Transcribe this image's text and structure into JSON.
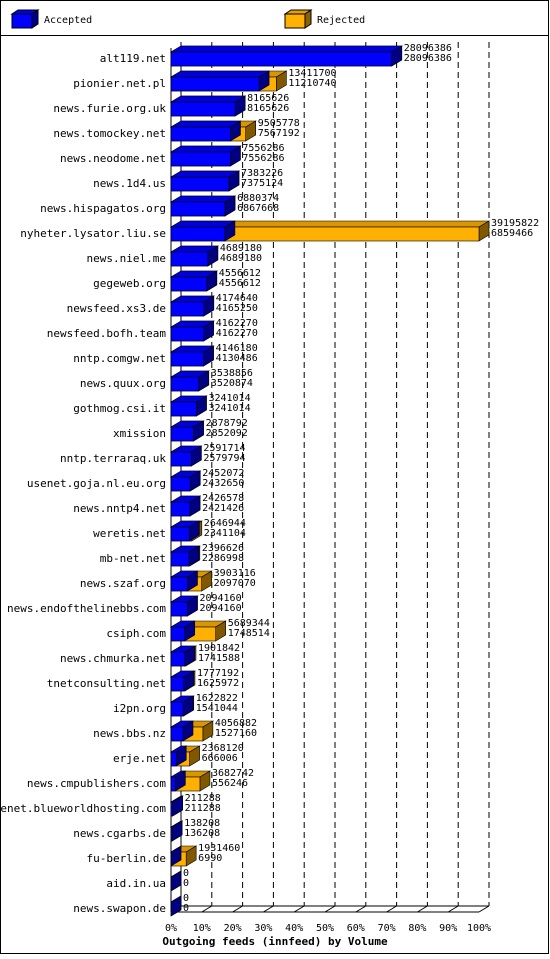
{
  "chart_data": {
    "type": "bar3d",
    "orientation": "horizontal",
    "overlap": true,
    "title": "Outgoing feeds (innfeed) by Volume",
    "categories": [
      "alt119.net",
      "pionier.net.pl",
      "news.furie.org.uk",
      "news.tomockey.net",
      "news.neodome.net",
      "news.1d4.us",
      "news.hispagatos.org",
      "nyheter.lysator.liu.se",
      "news.niel.me",
      "gegeweb.org",
      "newsfeed.xs3.de",
      "newsfeed.bofh.team",
      "nntp.comgw.net",
      "news.quux.org",
      "gothmog.csi.it",
      "xmission",
      "nntp.terraraq.uk",
      "usenet.goja.nl.eu.org",
      "news.nntp4.net",
      "weretis.net",
      "mb-net.net",
      "news.szaf.org",
      "news.endofthelinebbs.com",
      "csiph.com",
      "news.chmurka.net",
      "tnetconsulting.net",
      "i2pn.org",
      "news.bbs.nz",
      "erje.net",
      "news.cmpublishers.com",
      "usenet.blueworldhosting.com",
      "news.cgarbs.de",
      "fu-berlin.de",
      "aid.in.ua",
      "news.swapon.de"
    ],
    "series": [
      {
        "name": "Accepted",
        "color": "#0000ff",
        "values": [
          28096386,
          11210740,
          8165626,
          7567192,
          7556286,
          7375124,
          6867668,
          6859466,
          4689180,
          4556612,
          4165250,
          4162270,
          4130486,
          3520874,
          3241014,
          2852092,
          2579794,
          2432650,
          2421426,
          2341104,
          2286998,
          2097070,
          2094160,
          1748514,
          1741588,
          1625972,
          1541044,
          1527160,
          666006,
          556246,
          211288,
          136208,
          6990,
          0,
          0
        ]
      },
      {
        "name": "Rejected",
        "color": "#ffb000",
        "values": [
          28096386,
          13411700,
          8165626,
          9505778,
          7556286,
          7383226,
          6880374,
          39195822,
          4689180,
          4556612,
          4174640,
          4162270,
          4146180,
          3538856,
          3241014,
          2878792,
          2591714,
          2452072,
          2426578,
          2646944,
          2396626,
          3903116,
          2094160,
          5689344,
          1901842,
          1777192,
          1622822,
          4056882,
          2368120,
          3682742,
          211288,
          138208,
          1931460,
          0,
          0
        ]
      }
    ],
    "xlim": [
      0,
      39195822
    ],
    "xticks": [
      {
        "value": 0,
        "label": "0%"
      },
      {
        "value": 3919582.2,
        "label": "10%"
      },
      {
        "value": 7839164.4,
        "label": "20%"
      },
      {
        "value": 11758746.6,
        "label": "30%"
      },
      {
        "value": 15678328.8,
        "label": "40%"
      },
      {
        "value": 19597911,
        "label": "50%"
      },
      {
        "value": 23517493.2,
        "label": "60%"
      },
      {
        "value": 27437075.4,
        "label": "70%"
      },
      {
        "value": 31356657.6,
        "label": "80%"
      },
      {
        "value": 35276239.8,
        "label": "90%"
      },
      {
        "value": 39195822,
        "label": "100%"
      }
    ],
    "grid": true,
    "legend": "top"
  }
}
